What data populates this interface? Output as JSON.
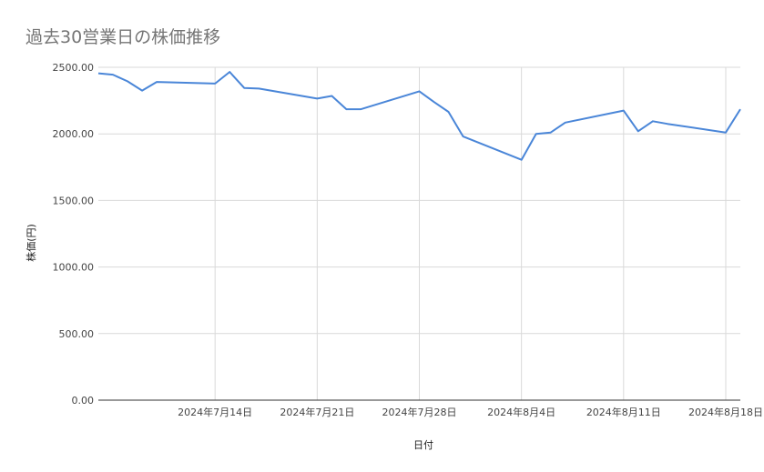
{
  "chart_data": {
    "type": "line",
    "title": "過去30営業日の株価推移",
    "xlabel": "日付",
    "ylabel": "株価(円)",
    "ylim": [
      0,
      2500
    ],
    "yticks": [
      0,
      500,
      1000,
      1500,
      2000,
      2500
    ],
    "ytick_labels": [
      "0.00",
      "500.00",
      "1000.00",
      "1500.00",
      "2000.00",
      "2500.00"
    ],
    "xlim": [
      "2024-07-06",
      "2024-08-19"
    ],
    "xticks": [
      "2024-07-14",
      "2024-07-21",
      "2024-07-28",
      "2024-08-04",
      "2024-08-11",
      "2024-08-18"
    ],
    "xtick_labels": [
      "2024年7月14日",
      "2024年7月21日",
      "2024年7月28日",
      "2024年8月4日",
      "2024年8月11日",
      "2024年8月18日"
    ],
    "grid": true,
    "color": "#4a86d8",
    "series": [
      {
        "x": [
          "2024-07-06",
          "2024-07-07",
          "2024-07-08",
          "2024-07-09",
          "2024-07-10",
          "2024-07-14",
          "2024-07-15",
          "2024-07-16",
          "2024-07-17",
          "2024-07-21",
          "2024-07-22",
          "2024-07-23",
          "2024-07-24",
          "2024-07-28",
          "2024-07-29",
          "2024-07-30",
          "2024-07-31",
          "2024-08-04",
          "2024-08-05",
          "2024-08-06",
          "2024-08-07",
          "2024-08-11",
          "2024-08-12",
          "2024-08-13",
          "2024-08-14",
          "2024-08-18",
          "2024-08-19"
        ],
        "values": [
          2455,
          2445,
          2395,
          2325,
          2390,
          2378,
          2465,
          2345,
          2340,
          2265,
          2285,
          2185,
          2185,
          2320,
          2240,
          2165,
          1980,
          1805,
          2000,
          2010,
          2085,
          2175,
          2020,
          2095,
          2075,
          2010,
          2185
        ]
      }
    ]
  }
}
